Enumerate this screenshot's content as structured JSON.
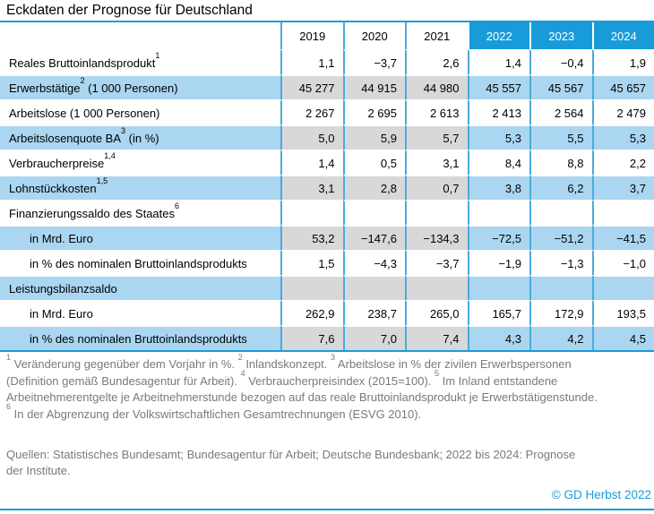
{
  "title": "Eckdaten der Prognose für Deutschland",
  "colors": {
    "header_blue": "#189cd9",
    "border_blue": "#49abdb",
    "stripe_blue": "#abd6f1",
    "history_grey": "#d8d8d8",
    "footnote_grey": "#7a7a7a"
  },
  "chart_data": {
    "type": "table",
    "title": "Eckdaten der Prognose für Deutschland",
    "columns": [
      "2019",
      "2020",
      "2021",
      "2022",
      "2023",
      "2024"
    ],
    "forecast_columns": [
      "2022",
      "2023",
      "2024"
    ],
    "rows": [
      {
        "label": "Reales Bruttoinlandsprodukt",
        "sup": "1",
        "suffix": "",
        "indent": false,
        "striped": false,
        "values": [
          "1,1",
          "−3,7",
          "2,6",
          "1,4",
          "−0,4",
          "1,9"
        ]
      },
      {
        "label": "Erwerbstätige",
        "sup": "2",
        "suffix": " (1 000 Personen)",
        "indent": false,
        "striped": true,
        "values": [
          "45 277",
          "44 915",
          "44 980",
          "45 557",
          "45 567",
          "45 657"
        ]
      },
      {
        "label": "Arbeitslose (1 000 Personen)",
        "sup": "",
        "suffix": "",
        "indent": false,
        "striped": false,
        "values": [
          "2 267",
          "2 695",
          "2 613",
          "2 413",
          "2 564",
          "2 479"
        ]
      },
      {
        "label": "Arbeitslosenquote BA",
        "sup": "3",
        "suffix": " (in %)",
        "indent": false,
        "striped": true,
        "values": [
          "5,0",
          "5,9",
          "5,7",
          "5,3",
          "5,5",
          "5,3"
        ]
      },
      {
        "label": "Verbraucherpreise",
        "sup": "1,4",
        "suffix": "",
        "indent": false,
        "striped": false,
        "values": [
          "1,4",
          "0,5",
          "3,1",
          "8,4",
          "8,8",
          "2,2"
        ]
      },
      {
        "label": "Lohnstückkosten",
        "sup": "1,5",
        "suffix": "",
        "indent": false,
        "striped": true,
        "values": [
          "3,1",
          "2,8",
          "0,7",
          "3,8",
          "6,2",
          "3,7"
        ]
      },
      {
        "label": "Finanzierungssaldo des Staates",
        "sup": "6",
        "suffix": "",
        "indent": false,
        "striped": false,
        "values": [
          "",
          "",
          "",
          "",
          "",
          ""
        ]
      },
      {
        "label": "in Mrd. Euro",
        "sup": "",
        "suffix": "",
        "indent": true,
        "striped": true,
        "values": [
          "53,2",
          "−147,6",
          "−134,3",
          "−72,5",
          "−51,2",
          "−41,5"
        ]
      },
      {
        "label": "in % des nominalen Bruttoinlandsprodukts",
        "sup": "",
        "suffix": "",
        "indent": true,
        "striped": false,
        "values": [
          "1,5",
          "−4,3",
          "−3,7",
          "−1,9",
          "−1,3",
          "−1,0"
        ]
      },
      {
        "label": "Leistungsbilanzsaldo",
        "sup": "",
        "suffix": "",
        "indent": false,
        "striped": true,
        "values": [
          "",
          "",
          "",
          "",
          "",
          ""
        ]
      },
      {
        "label": "in Mrd. Euro",
        "sup": "",
        "suffix": "",
        "indent": true,
        "striped": false,
        "values": [
          "262,9",
          "238,7",
          "265,0",
          "165,7",
          "172,9",
          "193,5"
        ]
      },
      {
        "label": "in % des nominalen Bruttoinlandsprodukts",
        "sup": "",
        "suffix": "",
        "indent": true,
        "striped": true,
        "values": [
          "7,6",
          "7,0",
          "7,4",
          "4,3",
          "4,2",
          "4,5"
        ]
      }
    ]
  },
  "footnotes": {
    "lines": [
      [
        {
          "sup": "1"
        },
        {
          "text": " Veränderung gegenüber dem Vorjahr in %. "
        },
        {
          "sup": "2"
        },
        {
          "text": " Inlandskonzept. "
        },
        {
          "sup": "3"
        },
        {
          "text": " Arbeitslose in % der zivilen Erwerbspersonen"
        }
      ],
      [
        {
          "text": "(Definition gemäß Bundesagentur für Arbeit). "
        },
        {
          "sup": "4"
        },
        {
          "text": " Verbraucherpreisindex (2015=100). "
        },
        {
          "sup": "5"
        },
        {
          "text": " Im Inland entstandene"
        }
      ],
      [
        {
          "text": "Arbeitnehmerentgelte je Arbeitnehmerstunde bezogen auf das reale Bruttoinlandsprodukt je Erwerbstätigenstunde."
        }
      ],
      [
        {
          "sup": "6"
        },
        {
          "text": " In der Abgrenzung der Volkswirtschaftlichen Gesamtrechnungen (ESVG 2010)."
        }
      ]
    ]
  },
  "sources": [
    "Quellen: Statistisches Bundesamt; Bundesagentur für Arbeit; Deutsche Bundesbank; 2022 bis 2024: Prognose",
    "der Institute."
  ],
  "copyright": "© GD Herbst 2022"
}
